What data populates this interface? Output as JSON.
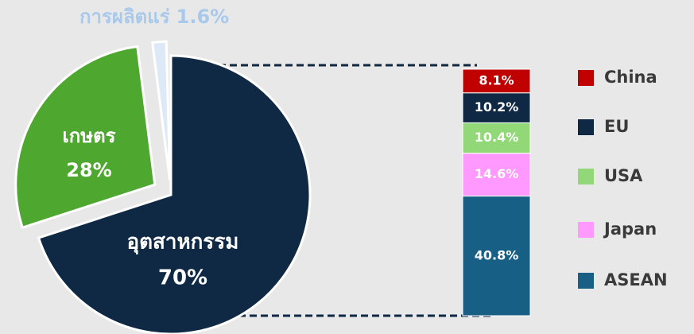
{
  "chart_data": [
    {
      "type": "pie",
      "categories": [
        "อุตสาหกรรม",
        "เกษตร",
        "การผลิตแร่"
      ],
      "values": [
        70,
        28,
        1.6
      ],
      "value_labels": [
        "70%",
        "28%",
        "1.6%"
      ],
      "colors": [
        "#0f2944",
        "#4ea72e",
        "#dde9f6"
      ]
    },
    {
      "type": "stacked_bar",
      "series": [
        {
          "name": "China",
          "color": "#c00000",
          "values": [
            8.1
          ],
          "value_labels": [
            "8.1%"
          ]
        },
        {
          "name": "EU",
          "color": "#0f2944",
          "values": [
            10.2
          ],
          "value_labels": [
            "10.2%"
          ]
        },
        {
          "name": "USA",
          "color": "#92d878",
          "values": [
            10.4
          ],
          "value_labels": [
            "10.4%"
          ]
        },
        {
          "name": "Japan",
          "color": "#ff99ff",
          "values": [
            14.6
          ],
          "value_labels": [
            "14.6%"
          ]
        },
        {
          "name": "ASEAN",
          "color": "#175f84",
          "values": [
            40.8
          ],
          "value_labels": [
            "40.8%"
          ]
        }
      ]
    }
  ]
}
